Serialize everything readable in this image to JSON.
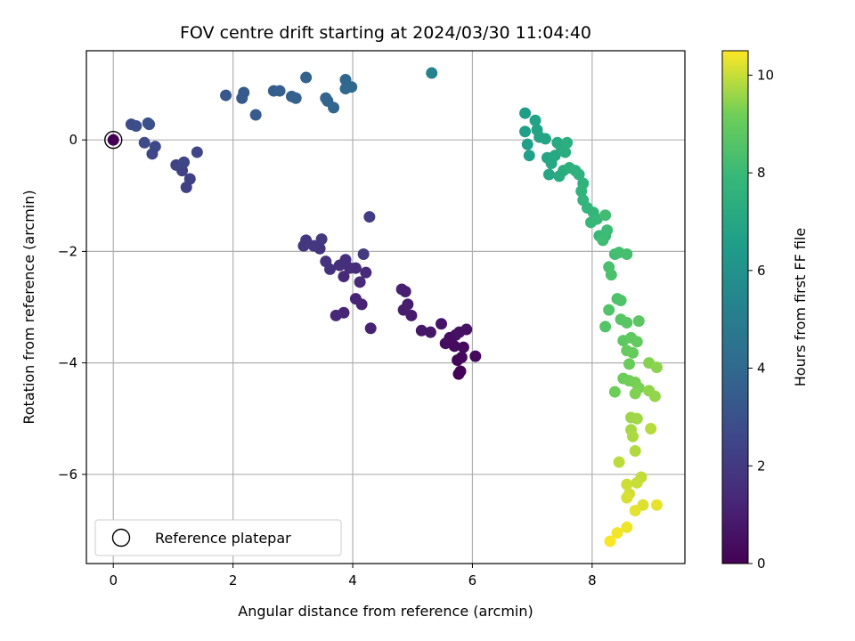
{
  "chart_data": {
    "type": "scatter",
    "title": "FOV centre drift starting at 2024/03/30 11:04:40",
    "xlabel": "Angular distance from reference (arcmin)",
    "ylabel": "Rotation from reference (arcmin)",
    "xlim": [
      -0.45,
      9.55
    ],
    "ylim": [
      -7.6,
      1.6
    ],
    "xticks": [
      0,
      2,
      4,
      6,
      8
    ],
    "yticks": [
      0,
      -2,
      -4,
      -6
    ],
    "grid": true,
    "colorbar": {
      "label": "Hours from first FF file",
      "range": [
        0,
        10.5
      ],
      "ticks": [
        0,
        2,
        4,
        6,
        8,
        10
      ],
      "colormap": "viridis"
    },
    "legend": {
      "position": "lower-left",
      "entries": [
        "Reference platepar"
      ]
    },
    "reference_point": {
      "x": 0,
      "y": 0,
      "label": "Reference platepar"
    },
    "points": [
      [
        5.77,
        -4.2,
        0.05
      ],
      [
        5.8,
        -4.15,
        0.1
      ],
      [
        5.75,
        -3.95,
        0.15
      ],
      [
        5.82,
        -3.9,
        0.2
      ],
      [
        6.05,
        -3.88,
        0.25
      ],
      [
        5.85,
        -3.72,
        0.3
      ],
      [
        5.7,
        -3.7,
        0.35
      ],
      [
        5.55,
        -3.65,
        0.4
      ],
      [
        5.62,
        -3.55,
        0.45
      ],
      [
        5.72,
        -3.5,
        0.5
      ],
      [
        5.9,
        -3.4,
        0.55
      ],
      [
        5.78,
        -3.45,
        0.6
      ],
      [
        5.48,
        -3.3,
        0.65
      ],
      [
        5.3,
        -3.45,
        0.7
      ],
      [
        5.15,
        -3.42,
        0.75
      ],
      [
        4.98,
        -3.15,
        0.85
      ],
      [
        4.85,
        -3.05,
        0.9
      ],
      [
        4.92,
        -2.95,
        0.95
      ],
      [
        4.88,
        -2.72,
        1.0
      ],
      [
        4.82,
        -2.68,
        1.05
      ],
      [
        4.3,
        -3.38,
        1.1
      ],
      [
        4.15,
        -2.95,
        1.15
      ],
      [
        4.05,
        -2.85,
        1.2
      ],
      [
        3.85,
        -3.1,
        1.25
      ],
      [
        3.72,
        -3.15,
        1.3
      ],
      [
        3.85,
        -2.45,
        1.35
      ],
      [
        4.12,
        -2.55,
        1.4
      ],
      [
        4.22,
        -2.38,
        1.45
      ],
      [
        4.05,
        -2.3,
        1.5
      ],
      [
        3.95,
        -2.3,
        1.55
      ],
      [
        3.88,
        -2.15,
        1.6
      ],
      [
        3.78,
        -2.25,
        1.65
      ],
      [
        3.62,
        -2.32,
        1.7
      ],
      [
        3.55,
        -2.18,
        1.75
      ],
      [
        3.45,
        -1.95,
        1.8
      ],
      [
        3.35,
        -1.9,
        1.85
      ],
      [
        3.18,
        -1.9,
        1.9
      ],
      [
        3.22,
        -1.8,
        1.95
      ],
      [
        3.48,
        -1.78,
        2.0
      ],
      [
        4.18,
        -2.05,
        2.05
      ],
      [
        4.28,
        -1.38,
        2.1
      ],
      [
        1.22,
        -0.85,
        2.25
      ],
      [
        1.28,
        -0.7,
        2.3
      ],
      [
        1.15,
        -0.55,
        2.35
      ],
      [
        1.05,
        -0.45,
        2.4
      ],
      [
        1.4,
        -0.22,
        2.45
      ],
      [
        1.18,
        -0.4,
        2.5
      ],
      [
        0.65,
        -0.25,
        2.55
      ],
      [
        0.7,
        -0.12,
        2.6
      ],
      [
        0.52,
        -0.05,
        2.65
      ],
      [
        0.3,
        0.28,
        2.8
      ],
      [
        0.38,
        0.25,
        2.85
      ],
      [
        0.58,
        0.3,
        2.9
      ],
      [
        0.6,
        0.28,
        2.95
      ],
      [
        1.88,
        0.8,
        3.2
      ],
      [
        2.15,
        0.75,
        3.3
      ],
      [
        2.18,
        0.85,
        3.35
      ],
      [
        2.38,
        0.45,
        3.4
      ],
      [
        2.68,
        0.88,
        3.5
      ],
      [
        2.78,
        0.88,
        3.55
      ],
      [
        2.98,
        0.78,
        3.6
      ],
      [
        3.05,
        0.75,
        3.65
      ],
      [
        3.22,
        1.12,
        3.7
      ],
      [
        3.55,
        0.75,
        3.75
      ],
      [
        3.58,
        0.7,
        3.8
      ],
      [
        3.68,
        0.58,
        3.85
      ],
      [
        3.88,
        1.08,
        3.9
      ],
      [
        3.88,
        0.92,
        3.95
      ],
      [
        3.98,
        0.95,
        4.0
      ],
      [
        5.32,
        1.2,
        5.3
      ],
      [
        6.88,
        0.48,
        6.5
      ],
      [
        6.88,
        0.15,
        6.6
      ],
      [
        6.92,
        -0.08,
        6.65
      ],
      [
        6.95,
        -0.28,
        6.7
      ],
      [
        7.05,
        0.35,
        6.75
      ],
      [
        7.08,
        0.18,
        6.8
      ],
      [
        7.12,
        0.05,
        6.85
      ],
      [
        7.22,
        0.02,
        6.9
      ],
      [
        7.25,
        -0.32,
        6.95
      ],
      [
        7.28,
        -0.62,
        7.0
      ],
      [
        7.32,
        -0.42,
        7.05
      ],
      [
        7.38,
        -0.28,
        7.1
      ],
      [
        7.42,
        -0.05,
        7.15
      ],
      [
        7.48,
        -0.12,
        7.2
      ],
      [
        7.45,
        -0.65,
        7.25
      ],
      [
        7.52,
        -0.55,
        7.3
      ],
      [
        7.55,
        -0.22,
        7.35
      ],
      [
        7.58,
        -0.05,
        7.4
      ],
      [
        7.62,
        -0.5,
        7.45
      ],
      [
        7.72,
        -0.55,
        7.5
      ],
      [
        7.78,
        -0.62,
        7.55
      ],
      [
        7.85,
        -0.78,
        7.6
      ],
      [
        7.82,
        -0.92,
        7.65
      ],
      [
        7.85,
        -1.08,
        7.7
      ],
      [
        7.92,
        -1.22,
        7.75
      ],
      [
        8.02,
        -1.3,
        7.8
      ],
      [
        7.98,
        -1.48,
        7.85
      ],
      [
        8.08,
        -1.42,
        7.9
      ],
      [
        8.12,
        -1.72,
        7.95
      ],
      [
        8.22,
        -1.72,
        8.0
      ],
      [
        8.25,
        -1.62,
        8.05
      ],
      [
        8.18,
        -1.8,
        8.1
      ],
      [
        8.22,
        -1.35,
        8.15
      ],
      [
        8.38,
        -2.05,
        8.2
      ],
      [
        8.45,
        -2.02,
        8.25
      ],
      [
        8.58,
        -2.05,
        8.3
      ],
      [
        8.28,
        -2.28,
        8.35
      ],
      [
        8.32,
        -2.42,
        8.4
      ],
      [
        8.42,
        -2.85,
        8.45
      ],
      [
        8.48,
        -2.88,
        8.5
      ],
      [
        8.28,
        -3.05,
        8.55
      ],
      [
        8.22,
        -3.35,
        8.6
      ],
      [
        8.48,
        -3.22,
        8.65
      ],
      [
        8.58,
        -3.28,
        8.7
      ],
      [
        8.78,
        -3.25,
        8.75
      ],
      [
        8.52,
        -3.6,
        8.8
      ],
      [
        8.65,
        -3.55,
        8.85
      ],
      [
        8.75,
        -3.62,
        8.9
      ],
      [
        8.68,
        -3.82,
        8.95
      ],
      [
        8.58,
        -3.78,
        9.0
      ],
      [
        8.62,
        -4.02,
        9.05
      ],
      [
        8.52,
        -4.28,
        9.1
      ],
      [
        8.38,
        -4.52,
        9.15
      ],
      [
        8.62,
        -4.32,
        9.2
      ],
      [
        8.72,
        -4.35,
        9.25
      ],
      [
        8.78,
        -4.45,
        9.3
      ],
      [
        8.72,
        -4.55,
        9.35
      ],
      [
        8.95,
        -4.0,
        9.4
      ],
      [
        9.08,
        -4.08,
        9.45
      ],
      [
        8.95,
        -4.5,
        9.5
      ],
      [
        9.05,
        -4.6,
        9.55
      ],
      [
        8.65,
        -4.98,
        9.6
      ],
      [
        8.75,
        -5.0,
        9.65
      ],
      [
        8.65,
        -5.2,
        9.7
      ],
      [
        8.68,
        -5.32,
        9.75
      ],
      [
        8.72,
        -5.58,
        9.8
      ],
      [
        8.98,
        -5.18,
        9.85
      ],
      [
        8.45,
        -5.78,
        9.9
      ],
      [
        8.82,
        -6.05,
        9.95
      ],
      [
        8.75,
        -6.15,
        10.0
      ],
      [
        8.58,
        -6.18,
        10.05
      ],
      [
        8.62,
        -6.35,
        10.1
      ],
      [
        8.58,
        -6.42,
        10.15
      ],
      [
        8.85,
        -6.55,
        10.2
      ],
      [
        8.72,
        -6.65,
        10.25
      ],
      [
        9.08,
        -6.55,
        10.3
      ],
      [
        8.58,
        -6.95,
        10.35
      ],
      [
        8.42,
        -7.05,
        10.4
      ],
      [
        8.3,
        -7.2,
        10.45
      ]
    ]
  }
}
